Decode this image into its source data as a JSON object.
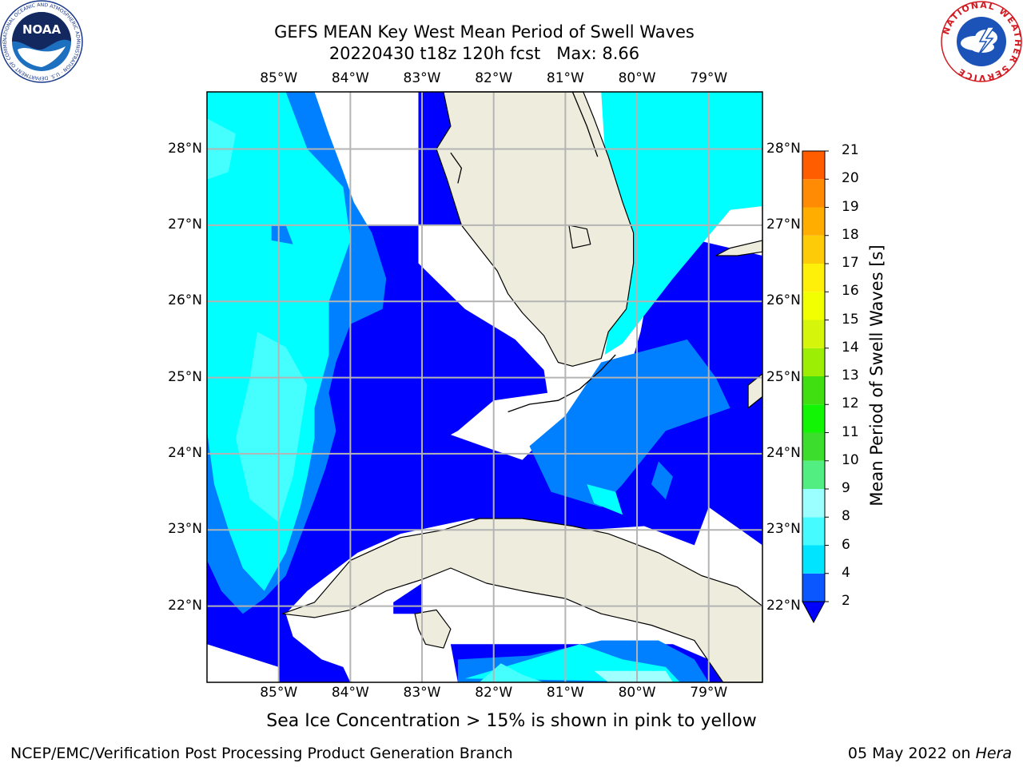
{
  "title": {
    "line1": "GEFS MEAN Key West Mean Period of Swell Waves",
    "line2": "20220430 t18z 120h fcst   Max: 8.66"
  },
  "logos": {
    "left": "noaa-logo",
    "right": "national-weather-service-logo",
    "left_ring_text": "NATIONAL OCEANIC AND ATMOSPHERIC ADMINISTRATION · U.S. DEPARTMENT OF COMMERCE ·",
    "left_center_text": "NOAA",
    "right_ring_text": "NATIONAL WEATHER SERVICE"
  },
  "map": {
    "lon_labels": [
      "85°W",
      "84°W",
      "83°W",
      "82°W",
      "81°W",
      "80°W",
      "79°W"
    ],
    "lat_labels": [
      "28°N",
      "27°N",
      "26°N",
      "25°N",
      "24°N",
      "23°N",
      "22°N"
    ],
    "lon_range": [
      -86.0,
      -78.25
    ],
    "lat_range": [
      21.0,
      28.75
    ],
    "grid": true,
    "land_color": "#eeecdc",
    "coast_color": "#000000"
  },
  "colorbar": {
    "label": "Mean Period of Swell Waves [s]",
    "ticks": [
      "2",
      "4",
      "6",
      "8",
      "9",
      "10",
      "11",
      "12",
      "13",
      "14",
      "15",
      "16",
      "17",
      "18",
      "19",
      "20",
      "21"
    ],
    "colors": [
      "#0a56ff",
      "#00e4ff",
      "#46fbff",
      "#9afffe",
      "#52ee81",
      "#3ddd2e",
      "#12f505",
      "#40df11",
      "#9cee05",
      "#d5f50b",
      "#f1ff01",
      "#fff009",
      "#fdcb08",
      "#ffae00",
      "#ff8a04",
      "#ff5d00",
      "#ff3c00",
      "#ff0000"
    ],
    "extend": "min",
    "under_color": "#0000ff"
  },
  "field_colors": {
    "lt2": "#0000ff",
    "p2_4": "#0080ff",
    "p4_6": "#00ffff",
    "p6_8": "#45ffff",
    "p8_9": "#a0ffff",
    "nodata": "#ffffff"
  },
  "note": "Sea Ice Concentration > 15% is shown in pink to yellow",
  "footer": {
    "left": "NCEP/EMC/Verification Post Processing Product Generation Branch",
    "right_prefix": "05 May 2022 on ",
    "right_host": "Hera"
  }
}
